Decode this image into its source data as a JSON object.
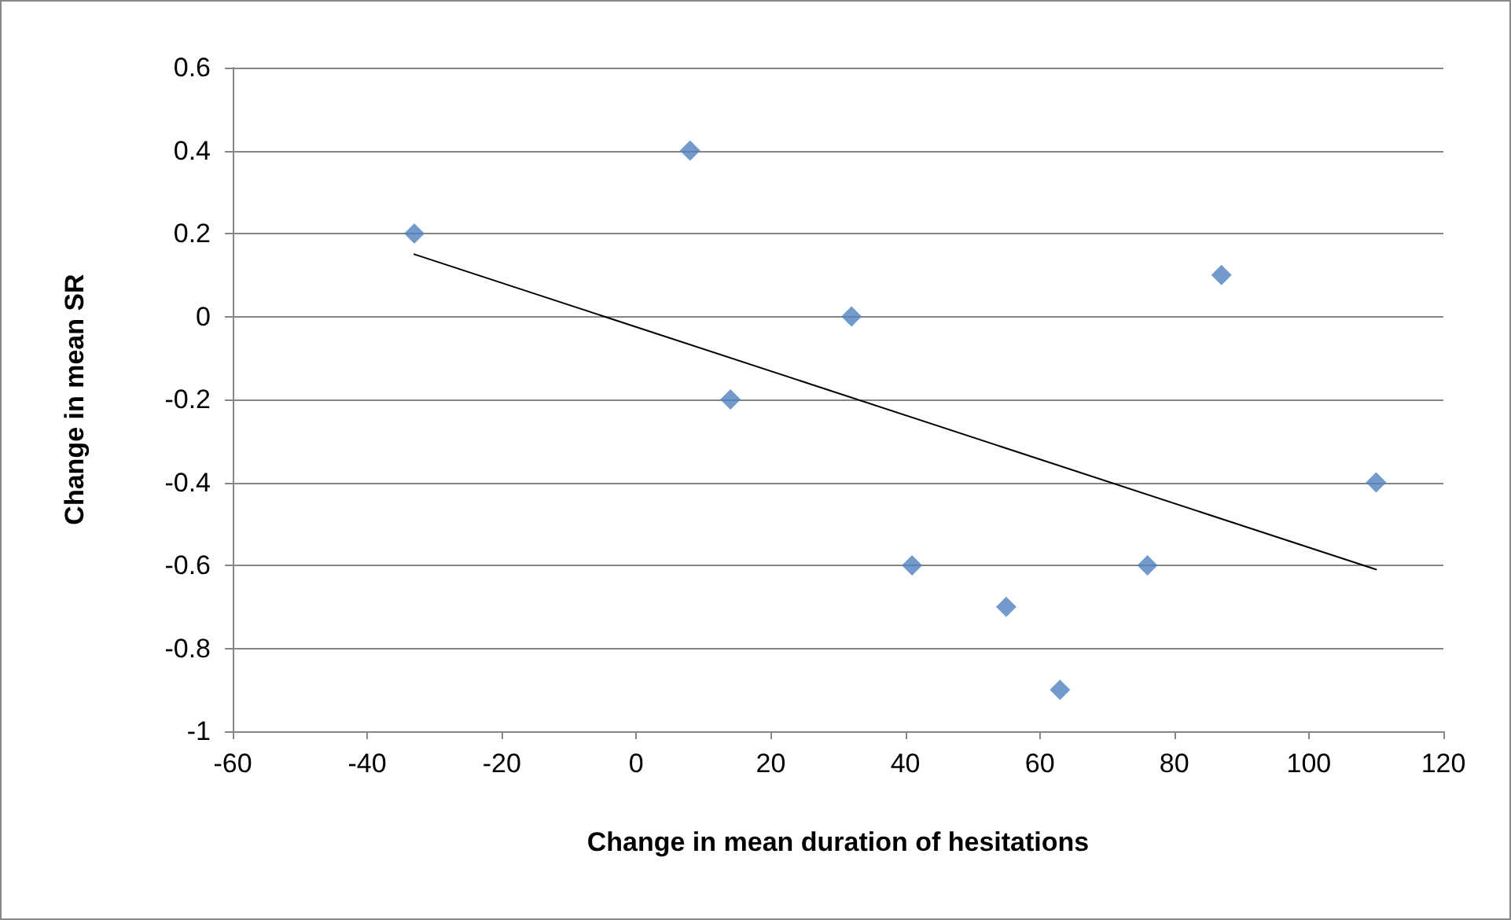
{
  "chart_data": {
    "type": "scatter",
    "xlabel": "Change in mean duration of hesitations",
    "ylabel": "Change in mean SR",
    "series": [
      {
        "color": "#4f81bd",
        "x": [
          -33,
          8,
          14,
          32,
          41,
          55,
          63,
          76,
          87,
          110
        ],
        "values": [
          0.2,
          0.4,
          -0.2,
          0,
          -0.6,
          -0.7,
          -0.9,
          -0.6,
          0.1,
          -0.4
        ]
      },
      {
        "type": "line",
        "color": "#000000",
        "x": [
          -33,
          110
        ],
        "values": [
          0.15,
          -0.61
        ],
        "marker": "none"
      }
    ],
    "xlim": [
      -60,
      120
    ],
    "xticks": [
      -60,
      -40,
      -20,
      0,
      20,
      40,
      60,
      80,
      100,
      120
    ],
    "ylim": [
      -1,
      0.6
    ],
    "yticks": [
      -1,
      -0.8,
      -0.6,
      -0.4,
      -0.2,
      0,
      0.2,
      0.4,
      0.6
    ],
    "grid": "y",
    "marker": "diamond"
  }
}
